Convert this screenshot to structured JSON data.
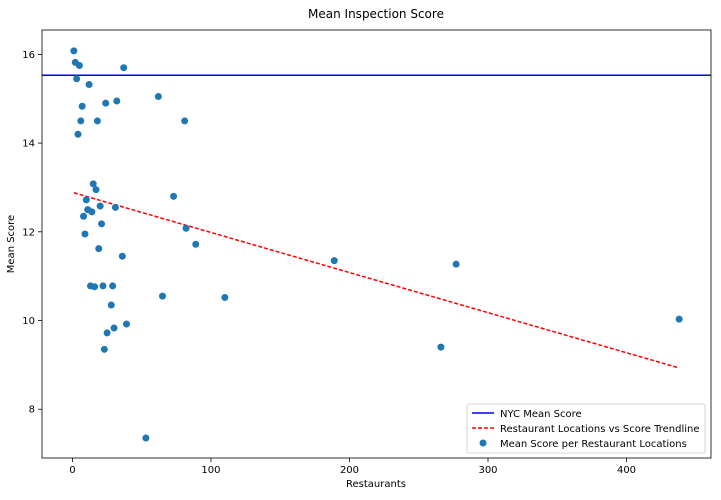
{
  "chart_data": {
    "type": "scatter",
    "title": "Mean Inspection Score",
    "xlabel": "Restaurants",
    "ylabel": "Mean Score",
    "xlim": [
      -22,
      461
    ],
    "ylim": [
      6.9,
      16.55
    ],
    "xticks": [
      0,
      100,
      200,
      300,
      400
    ],
    "yticks": [
      8,
      10,
      12,
      14,
      16
    ],
    "grid": false,
    "legend_position": "lower right",
    "series": [
      {
        "name": "NYC Mean Score",
        "kind": "hline",
        "color": "#0000ff",
        "y": 15.53
      },
      {
        "name": "Restaurant Locations vs Score Trendline",
        "kind": "line",
        "style": "dashed",
        "color": "#ff0000",
        "x": [
          1,
          438
        ],
        "y": [
          12.88,
          8.93
        ]
      },
      {
        "name": "Mean Score per Restaurant Locations",
        "kind": "scatter",
        "color": "#1f77b4",
        "points": [
          [
            1,
            16.08
          ],
          [
            2,
            15.82
          ],
          [
            3,
            15.45
          ],
          [
            4,
            14.2
          ],
          [
            5,
            15.75
          ],
          [
            6,
            14.5
          ],
          [
            7,
            14.83
          ],
          [
            8,
            12.35
          ],
          [
            9,
            11.95
          ],
          [
            10,
            12.72
          ],
          [
            11,
            12.5
          ],
          [
            12,
            15.32
          ],
          [
            13,
            10.78
          ],
          [
            14,
            12.45
          ],
          [
            15,
            13.08
          ],
          [
            16,
            10.76
          ],
          [
            17,
            12.95
          ],
          [
            18,
            14.5
          ],
          [
            19,
            11.62
          ],
          [
            20,
            12.58
          ],
          [
            21,
            12.18
          ],
          [
            22,
            10.78
          ],
          [
            23,
            9.35
          ],
          [
            24,
            14.9
          ],
          [
            25,
            9.72
          ],
          [
            28,
            10.35
          ],
          [
            29,
            10.78
          ],
          [
            30,
            9.83
          ],
          [
            31,
            12.55
          ],
          [
            32,
            14.95
          ],
          [
            36,
            11.45
          ],
          [
            37,
            15.7
          ],
          [
            39,
            9.92
          ],
          [
            53,
            7.35
          ],
          [
            62,
            15.05
          ],
          [
            65,
            10.55
          ],
          [
            73,
            12.8
          ],
          [
            81,
            14.5
          ],
          [
            82,
            12.08
          ],
          [
            89,
            11.72
          ],
          [
            110,
            10.52
          ],
          [
            189,
            11.35
          ],
          [
            266,
            9.4
          ],
          [
            277,
            11.27
          ],
          [
            438,
            10.03
          ]
        ]
      }
    ]
  }
}
